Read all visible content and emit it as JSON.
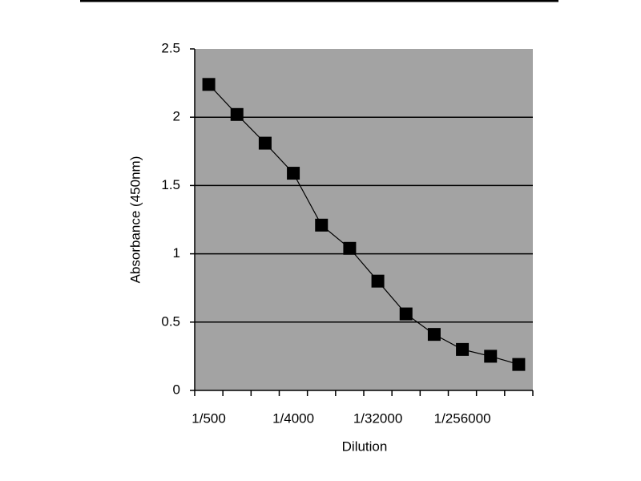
{
  "chart_data": {
    "type": "line",
    "x_label": "Dilution",
    "y_label": "Absorbance (450nm)",
    "categories": [
      "1/500",
      null,
      null,
      "1/4000",
      null,
      null,
      "1/32000",
      null,
      null,
      "1/256000",
      null,
      null
    ],
    "series": [
      {
        "color": "#000000",
        "values": [
          2.24,
          2.02,
          1.81,
          1.59,
          1.21,
          1.04,
          0.8,
          0.56,
          0.41,
          0.3,
          0.25,
          0.19
        ]
      }
    ],
    "ylim": [
      0,
      2.5
    ],
    "yticks": [
      0,
      0.5,
      1,
      1.5,
      2,
      2.5
    ],
    "grid": true,
    "background": "#a3a3a3"
  }
}
